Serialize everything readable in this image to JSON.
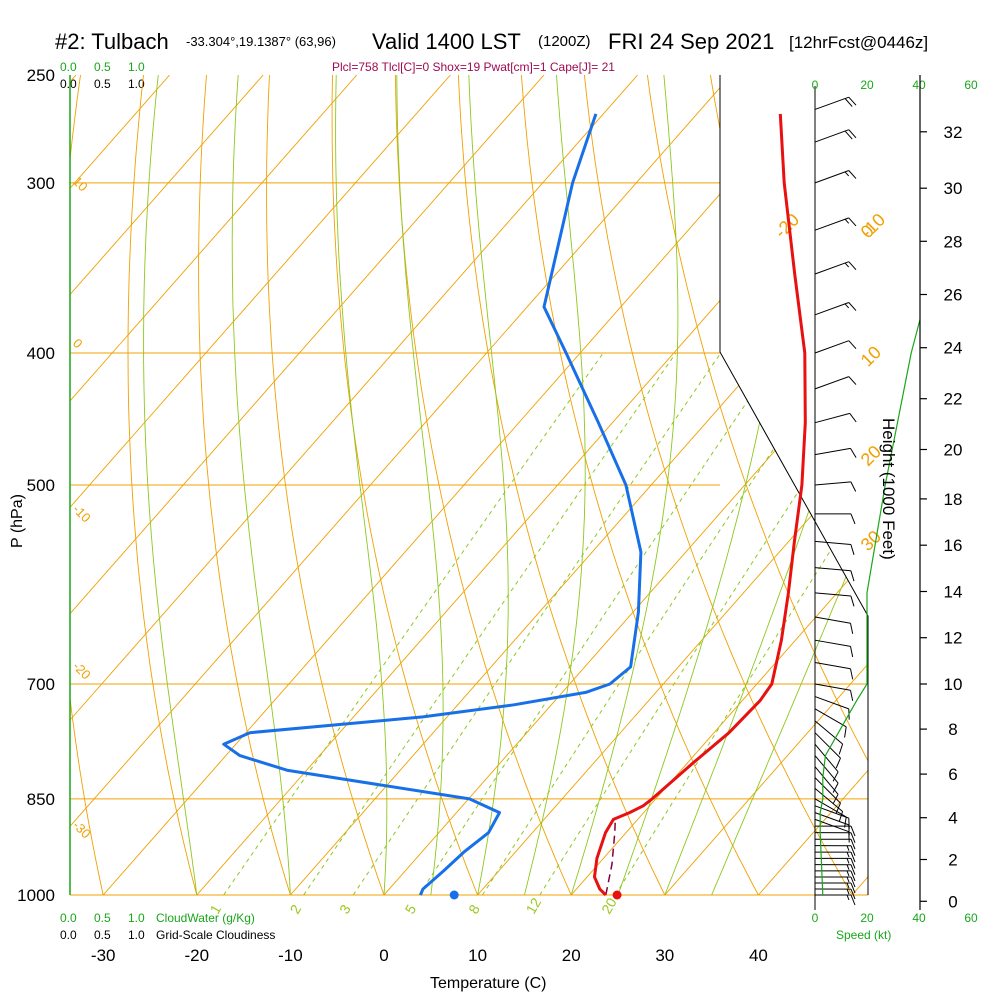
{
  "header": {
    "station": "#2: Tulbach",
    "coords": "-33.304°,19.1387° (63,96)",
    "valid": "Valid 1400 LST",
    "utc": "(1200Z)",
    "date": "FRI 24 Sep 2021",
    "forecast": "[12hrFcst@0446z]",
    "indices": "Plcl=758 Tlcl[C]=0 Shox=19 Pwat[cm]=1 Cape[J]= 21"
  },
  "axes": {
    "ylabel": "P (hPa)",
    "xlabel": "Temperature (C)",
    "right_label": "Height (1000 Feet)",
    "speed_label": "Speed (kt)",
    "cloudwater_label": "CloudWater (g/Kg)",
    "cloudiness_label": "Grid-Scale Cloudiness"
  },
  "colors": {
    "temperature": "#e81010",
    "dewpoint": "#1870e8",
    "isotherm": "#f0a000",
    "dry_adiabat": "#f0a000",
    "moist_adiabat": "#8cc81e",
    "mixing_ratio": "#8cc81e",
    "wind_speed": "#19a619",
    "parcel": "#800040"
  },
  "chart_data": {
    "type": "skew-t",
    "pressure_ticks": [
      250,
      300,
      400,
      500,
      700,
      850,
      1000
    ],
    "temperature_ticks": [
      -30,
      -20,
      -10,
      0,
      10,
      20,
      30,
      40
    ],
    "height_ticks_kft": [
      0,
      2,
      4,
      6,
      8,
      10,
      12,
      14,
      16,
      18,
      20,
      22,
      24,
      26,
      28,
      30,
      32
    ],
    "speed_ticks_kt": [
      0,
      20,
      40,
      60
    ],
    "cloud_ticks": [
      "0.0",
      "0.5",
      "1.0"
    ],
    "temperature_profile": [
      {
        "p": 1000,
        "t": 23.7
      },
      {
        "p": 990,
        "t": 22.5
      },
      {
        "p": 970,
        "t": 20.8
      },
      {
        "p": 940,
        "t": 19.3
      },
      {
        "p": 900,
        "t": 17.8
      },
      {
        "p": 880,
        "t": 17.4
      },
      {
        "p": 870,
        "t": 18.5
      },
      {
        "p": 860,
        "t": 19.3
      },
      {
        "p": 850,
        "t": 19.6
      },
      {
        "p": 800,
        "t": 20.6
      },
      {
        "p": 760,
        "t": 21.6
      },
      {
        "p": 720,
        "t": 21.9
      },
      {
        "p": 700,
        "t": 21.6
      },
      {
        "p": 650,
        "t": 18.5
      },
      {
        "p": 600,
        "t": 14.8
      },
      {
        "p": 550,
        "t": 10.6
      },
      {
        "p": 500,
        "t": 6.1
      },
      {
        "p": 450,
        "t": 0.6
      },
      {
        "p": 400,
        "t": -6.0
      },
      {
        "p": 350,
        "t": -14.5
      },
      {
        "p": 300,
        "t": -24.2
      },
      {
        "p": 267,
        "t": -31.1
      }
    ],
    "dewpoint_profile": [
      {
        "p": 1000,
        "t": 3.9
      },
      {
        "p": 990,
        "t": 3.6
      },
      {
        "p": 960,
        "t": 4.1
      },
      {
        "p": 930,
        "t": 4.5
      },
      {
        "p": 900,
        "t": 5.3
      },
      {
        "p": 870,
        "t": 4.6
      },
      {
        "p": 850,
        "t": 0.1
      },
      {
        "p": 810,
        "t": -22.0
      },
      {
        "p": 790,
        "t": -28.5
      },
      {
        "p": 775,
        "t": -31.3
      },
      {
        "p": 760,
        "t": -29.6
      },
      {
        "p": 740,
        "t": -12.6
      },
      {
        "p": 725,
        "t": -4.0
      },
      {
        "p": 710,
        "t": 2.5
      },
      {
        "p": 700,
        "t": 4.3
      },
      {
        "p": 680,
        "t": 4.9
      },
      {
        "p": 620,
        "t": 0.6
      },
      {
        "p": 560,
        "t": -4.8
      },
      {
        "p": 500,
        "t": -12.7
      },
      {
        "p": 450,
        "t": -21.5
      },
      {
        "p": 400,
        "t": -31.5
      },
      {
        "p": 370,
        "t": -38.2
      },
      {
        "p": 300,
        "t": -46.8
      },
      {
        "p": 267,
        "t": -50.8
      }
    ],
    "parcel_profile": [
      {
        "p": 1000,
        "t": 23.7
      },
      {
        "p": 950,
        "t": 21.5
      },
      {
        "p": 900,
        "t": 18.8
      },
      {
        "p": 880,
        "t": 17.6
      }
    ],
    "surface_temperature": 24.9,
    "surface_dewpoint": 7.5,
    "isotherm_labels": [
      -20,
      -10,
      0,
      10,
      20,
      30
    ],
    "dry_adiabat_labels": [
      10,
      0,
      -10,
      -20,
      -30
    ],
    "mixing_ratio_labels": [
      "1",
      "2",
      "3",
      "5",
      "8",
      "12",
      "20"
    ],
    "wind_barbs": [
      {
        "p": 1000,
        "dir": 270,
        "spd": 15
      },
      {
        "p": 990,
        "dir": 270,
        "spd": 15
      },
      {
        "p": 980,
        "dir": 270,
        "spd": 15
      },
      {
        "p": 970,
        "dir": 270,
        "spd": 15
      },
      {
        "p": 960,
        "dir": 270,
        "spd": 15
      },
      {
        "p": 950,
        "dir": 270,
        "spd": 15
      },
      {
        "p": 940,
        "dir": 270,
        "spd": 15
      },
      {
        "p": 930,
        "dir": 270,
        "spd": 15
      },
      {
        "p": 920,
        "dir": 270,
        "spd": 15
      },
      {
        "p": 910,
        "dir": 270,
        "spd": 10
      },
      {
        "p": 900,
        "dir": 270,
        "spd": 10
      },
      {
        "p": 890,
        "dir": 270,
        "spd": 10
      },
      {
        "p": 880,
        "dir": 290,
        "spd": 10
      },
      {
        "p": 870,
        "dir": 290,
        "spd": 10
      },
      {
        "p": 860,
        "dir": 290,
        "spd": 10
      },
      {
        "p": 850,
        "dir": 300,
        "spd": 10
      },
      {
        "p": 835,
        "dir": 310,
        "spd": 10
      },
      {
        "p": 820,
        "dir": 315,
        "spd": 10
      },
      {
        "p": 805,
        "dir": 320,
        "spd": 10
      },
      {
        "p": 790,
        "dir": 320,
        "spd": 10
      },
      {
        "p": 775,
        "dir": 320,
        "spd": 10
      },
      {
        "p": 760,
        "dir": 315,
        "spd": 10
      },
      {
        "p": 745,
        "dir": 310,
        "spd": 10
      },
      {
        "p": 730,
        "dir": 300,
        "spd": 10
      },
      {
        "p": 715,
        "dir": 290,
        "spd": 10
      },
      {
        "p": 700,
        "dir": 280,
        "spd": 10
      },
      {
        "p": 675,
        "dir": 280,
        "spd": 10
      },
      {
        "p": 650,
        "dir": 280,
        "spd": 10
      },
      {
        "p": 625,
        "dir": 280,
        "spd": 10
      },
      {
        "p": 600,
        "dir": 275,
        "spd": 10
      },
      {
        "p": 575,
        "dir": 275,
        "spd": 10
      },
      {
        "p": 550,
        "dir": 275,
        "spd": 10
      },
      {
        "p": 525,
        "dir": 270,
        "spd": 10
      },
      {
        "p": 500,
        "dir": 265,
        "spd": 10
      },
      {
        "p": 475,
        "dir": 260,
        "spd": 10
      },
      {
        "p": 450,
        "dir": 255,
        "spd": 10
      },
      {
        "p": 425,
        "dir": 250,
        "spd": 10
      },
      {
        "p": 400,
        "dir": 250,
        "spd": 10
      },
      {
        "p": 375,
        "dir": 250,
        "spd": 15
      },
      {
        "p": 350,
        "dir": 250,
        "spd": 15
      },
      {
        "p": 325,
        "dir": 250,
        "spd": 15
      },
      {
        "p": 300,
        "dir": 250,
        "spd": 15
      },
      {
        "p": 280,
        "dir": 250,
        "spd": 20
      },
      {
        "p": 265,
        "dir": 250,
        "spd": 20
      }
    ],
    "wind_speed_profile": [
      {
        "p": 1000,
        "spd": 3
      },
      {
        "p": 900,
        "spd": 2
      },
      {
        "p": 870,
        "spd": 2
      },
      {
        "p": 850,
        "spd": 3
      },
      {
        "p": 820,
        "spd": 3
      },
      {
        "p": 790,
        "spd": 4
      },
      {
        "p": 760,
        "spd": 9
      },
      {
        "p": 720,
        "spd": 16
      },
      {
        "p": 700,
        "spd": 20
      },
      {
        "p": 650,
        "spd": 20
      },
      {
        "p": 600,
        "spd": 20
      },
      {
        "p": 500,
        "spd": 27
      },
      {
        "p": 400,
        "spd": 37
      },
      {
        "p": 350,
        "spd": 45
      },
      {
        "p": 300,
        "spd": 47
      },
      {
        "p": 262,
        "spd": 49
      }
    ],
    "height_profile": [
      {
        "p": 1000,
        "h": 0.3
      },
      {
        "p": 850,
        "h": 4.9
      },
      {
        "p": 700,
        "h": 10.0
      },
      {
        "p": 500,
        "h": 18.6
      },
      {
        "p": 400,
        "h": 23.8
      },
      {
        "p": 300,
        "h": 30.2
      },
      {
        "p": 250,
        "h": 34.0
      }
    ]
  }
}
